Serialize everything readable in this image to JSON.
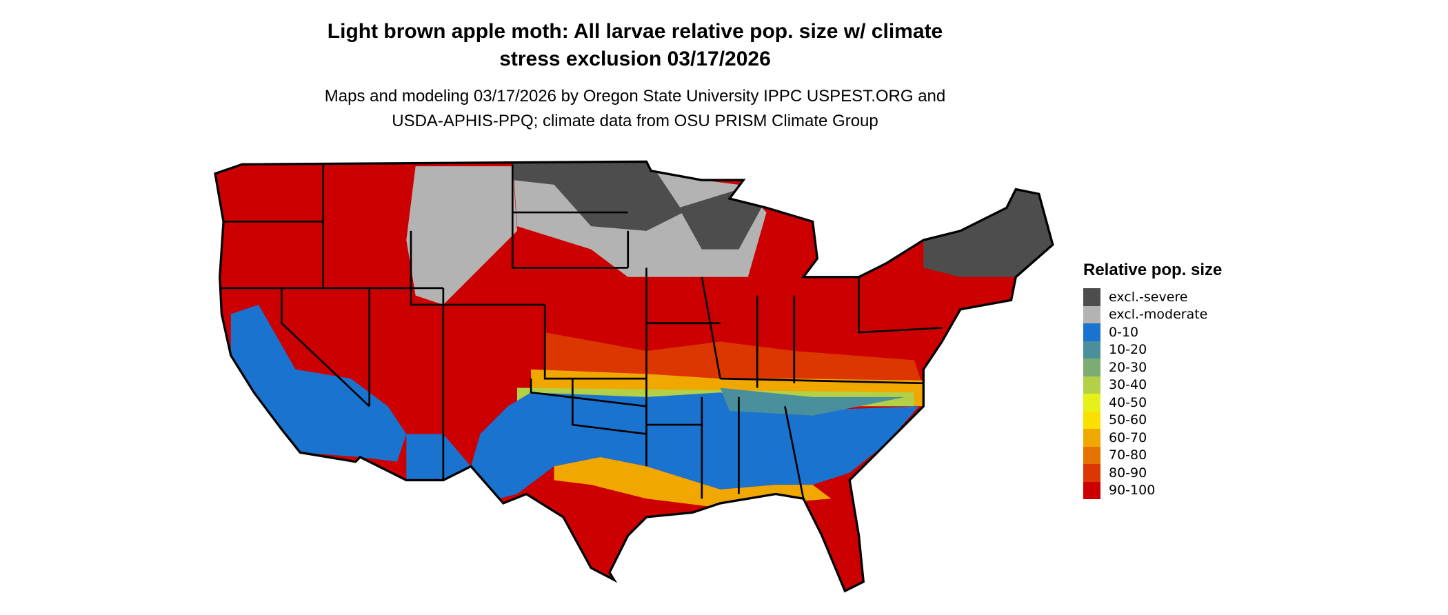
{
  "title": {
    "line1": "Light brown apple moth: All larvae relative pop. size w/ climate",
    "line2": "stress exclusion 03/17/2026"
  },
  "subtitle": {
    "line1": "Maps and modeling 03/17/2026 by Oregon State University IPPC USPEST.ORG and",
    "line2": "USDA-APHIS-PPQ; climate data from OSU PRISM Climate Group"
  },
  "legend": {
    "title": "Relative pop. size",
    "items": [
      {
        "label": "excl.-severe",
        "color": "#4d4d4d"
      },
      {
        "label": "excl.-moderate",
        "color": "#b3b3b3"
      },
      {
        "label": "0-10",
        "color": "#1a73cf"
      },
      {
        "label": "10-20",
        "color": "#4a909c"
      },
      {
        "label": "20-30",
        "color": "#7bad73"
      },
      {
        "label": "30-40",
        "color": "#b3d046"
      },
      {
        "label": "40-50",
        "color": "#e6f019"
      },
      {
        "label": "50-60",
        "color": "#f9e000"
      },
      {
        "label": "60-70",
        "color": "#f0a800"
      },
      {
        "label": "70-80",
        "color": "#e67200"
      },
      {
        "label": "80-90",
        "color": "#dc3700"
      },
      {
        "label": "90-100",
        "color": "#cc0000"
      }
    ]
  }
}
